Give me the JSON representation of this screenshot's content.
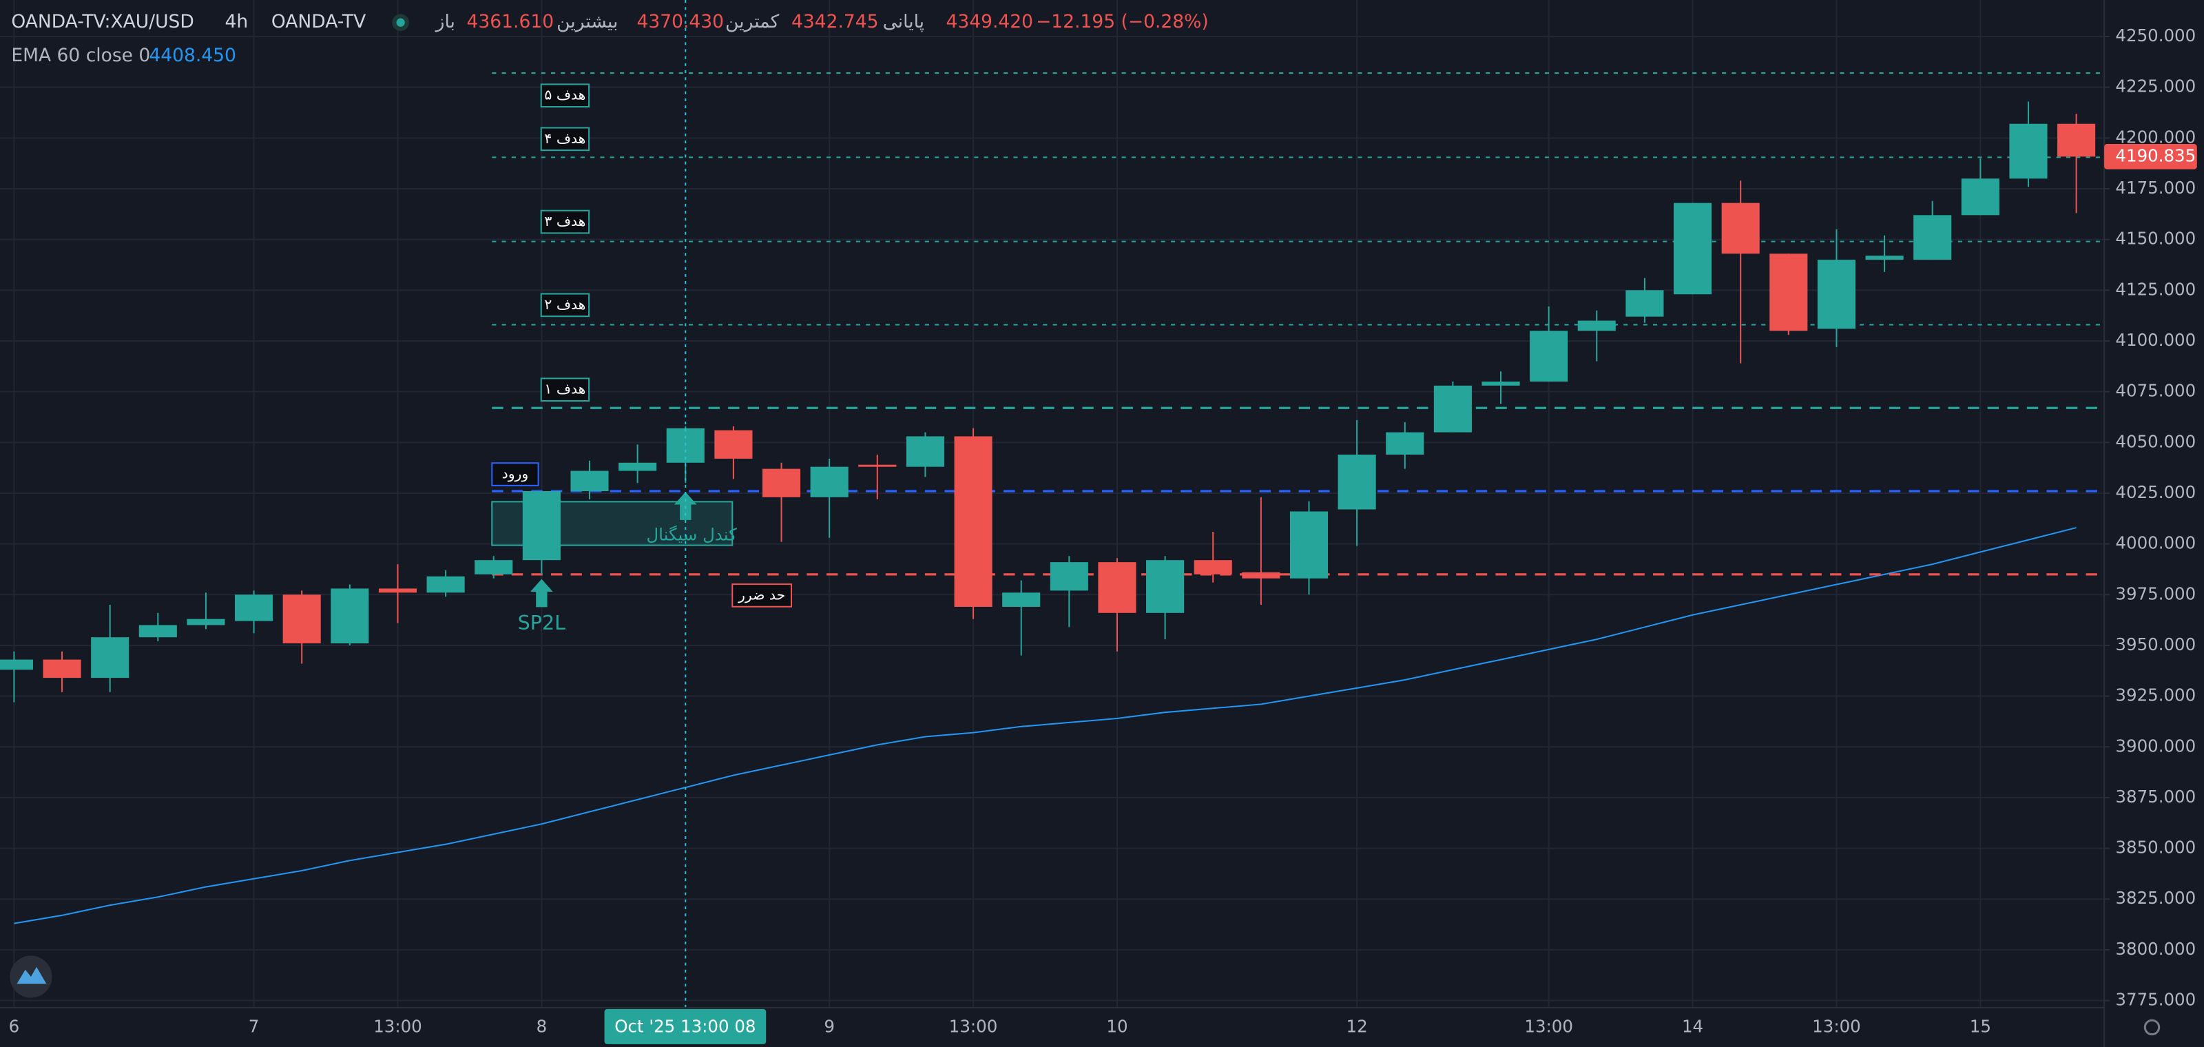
{
  "chart_data": {
    "type": "candlestick",
    "header": {
      "symbol": "OANDA-TV:XAU/USD",
      "interval": "4h",
      "source": "OANDA-TV",
      "open_label": "باز",
      "open": "4361.610",
      "high_label": "بیشترین",
      "high": "4370.430",
      "low_label": "کمترین",
      "low": "4342.745",
      "close_label": "پایانی",
      "close": "4349.420",
      "change": "−12.195 (−0.28%)"
    },
    "ema": {
      "name": "EMA 60 close 0",
      "last": "4408.450",
      "color": "#2196f3",
      "values": [
        3813,
        3817,
        3822,
        3826,
        3831,
        3835,
        3839,
        3844,
        3848,
        3852,
        3857,
        3862,
        3868,
        3874,
        3880,
        3886,
        3891,
        3896,
        3901,
        3905,
        3907,
        3910,
        3912,
        3914,
        3917,
        3919,
        3921,
        3925,
        3929,
        3933,
        3938,
        3943,
        3948,
        3953,
        3959,
        3965,
        3970,
        3975,
        3980,
        3985,
        3990,
        3996,
        4002,
        4008
      ]
    },
    "categories": [
      "6",
      null,
      null,
      null,
      null,
      "7",
      null,
      null,
      "13:00",
      null,
      null,
      "8",
      null,
      null,
      null,
      null,
      null,
      "9",
      null,
      null,
      "13:00",
      null,
      null,
      "10",
      null,
      null,
      null,
      null,
      "12",
      null,
      null,
      null,
      "13:00",
      null,
      null,
      "14",
      null,
      null,
      "13:00",
      null,
      null,
      "15",
      null,
      null
    ],
    "open": [
      3938,
      3943,
      3934,
      3954,
      3960,
      3962,
      3975,
      3951,
      3978,
      3976,
      3985,
      3992,
      4026,
      4036,
      4040,
      4056,
      4037,
      4023,
      4039,
      4038,
      4053,
      3969,
      3977,
      3991,
      3966,
      3992,
      3986,
      3983,
      4017,
      4044,
      4055,
      4078,
      4080,
      4105,
      4112,
      4123,
      4168,
      4143,
      4106,
      4140,
      4140,
      4162,
      4180,
      4207
    ],
    "high": [
      3947,
      3947,
      3970,
      3966,
      3976,
      3977,
      3977,
      3980,
      3990,
      3987,
      3994,
      4026,
      4041,
      4049,
      4058,
      4058,
      4040,
      4042,
      4044,
      4055,
      4057,
      3982,
      3994,
      3993,
      3994,
      4006,
      4023,
      4021,
      4061,
      4060,
      4080,
      4085,
      4117,
      4115,
      4131,
      4168,
      4179,
      4143,
      4155,
      4152,
      4169,
      4190,
      4218,
      4212
    ],
    "low": [
      3922,
      3927,
      3927,
      3952,
      3958,
      3956,
      3941,
      3950,
      3961,
      3974,
      3983,
      3985,
      4022,
      4030,
      4030,
      4032,
      4001,
      4003,
      4022,
      4033,
      3963,
      3945,
      3959,
      3947,
      3953,
      3981,
      3970,
      3975,
      3999,
      4037,
      4055,
      4069,
      4080,
      4090,
      4109,
      4123,
      4089,
      4103,
      4097,
      4134,
      4140,
      4162,
      4176,
      4163
    ],
    "close": [
      3943,
      3934,
      3954,
      3960,
      3963,
      3975,
      3951,
      3978,
      3976,
      3984,
      3992,
      4026,
      4036,
      4040,
      4057,
      4042,
      4023,
      4038,
      4038,
      4053,
      3969,
      3976,
      3991,
      3966,
      3992,
      3985,
      3983,
      4016,
      4044,
      4055,
      4078,
      4080,
      4105,
      4110,
      4125,
      4168,
      4143,
      4105,
      4140,
      4142,
      4162,
      4180,
      4207,
      4190.835
    ],
    "up_color": "#26a69a",
    "down_color": "#ef5350",
    "levels": [
      {
        "label": "هدف ۵",
        "value": 4232,
        "color": "#26a69a",
        "style": "dotted"
      },
      {
        "label": "هدف ۴",
        "value": 4190.5,
        "color": "#26a69a",
        "style": "dotted"
      },
      {
        "label": "هدف ۳",
        "value": 4149,
        "color": "#26a69a",
        "style": "dotted"
      },
      {
        "label": "هدف ۲",
        "value": 4108,
        "color": "#26a69a",
        "style": "dotted"
      },
      {
        "label": "هدف ۱",
        "value": 4067,
        "color": "#26a69a",
        "style": "dashed"
      },
      {
        "label": "ورود",
        "value": 4026,
        "color": "#2962ff",
        "style": "dashed"
      },
      {
        "label": "حد ضرر",
        "value": 3985,
        "color": "#ef5350",
        "style": "dashed"
      }
    ],
    "signal_box": "کندل سیگنال",
    "signal": "SP2L",
    "crosshair": "Oct '25   13:00 08",
    "ylim": [
      3771.5,
      4268
    ],
    "yticks": [
      {
        "value": 4250,
        "label": "4250.000"
      },
      {
        "value": 4225,
        "label": "4225.000"
      },
      {
        "value": 4200,
        "label": "4200.000"
      },
      {
        "value": 4175,
        "label": "4175.000"
      },
      {
        "value": 4150,
        "label": "4150.000"
      },
      {
        "value": 4125,
        "label": "4125.000"
      },
      {
        "value": 4100,
        "label": "4100.000"
      },
      {
        "value": 4075,
        "label": "4075.000"
      },
      {
        "value": 4050,
        "label": "4050.000"
      },
      {
        "value": 4025,
        "label": "4025.000"
      },
      {
        "value": 4000,
        "label": "4000.000"
      },
      {
        "value": 3975,
        "label": "3975.000"
      },
      {
        "value": 3950,
        "label": "3950.000"
      },
      {
        "value": 3925,
        "label": "3925.000"
      },
      {
        "value": 3900,
        "label": "3900.000"
      },
      {
        "value": 3875,
        "label": "3875.000"
      },
      {
        "value": 3850,
        "label": "3850.000"
      },
      {
        "value": 3825,
        "label": "3825.000"
      },
      {
        "value": 3800,
        "label": "3800.000"
      },
      {
        "value": 3775,
        "label": "3775.000"
      }
    ],
    "grid": true
  }
}
